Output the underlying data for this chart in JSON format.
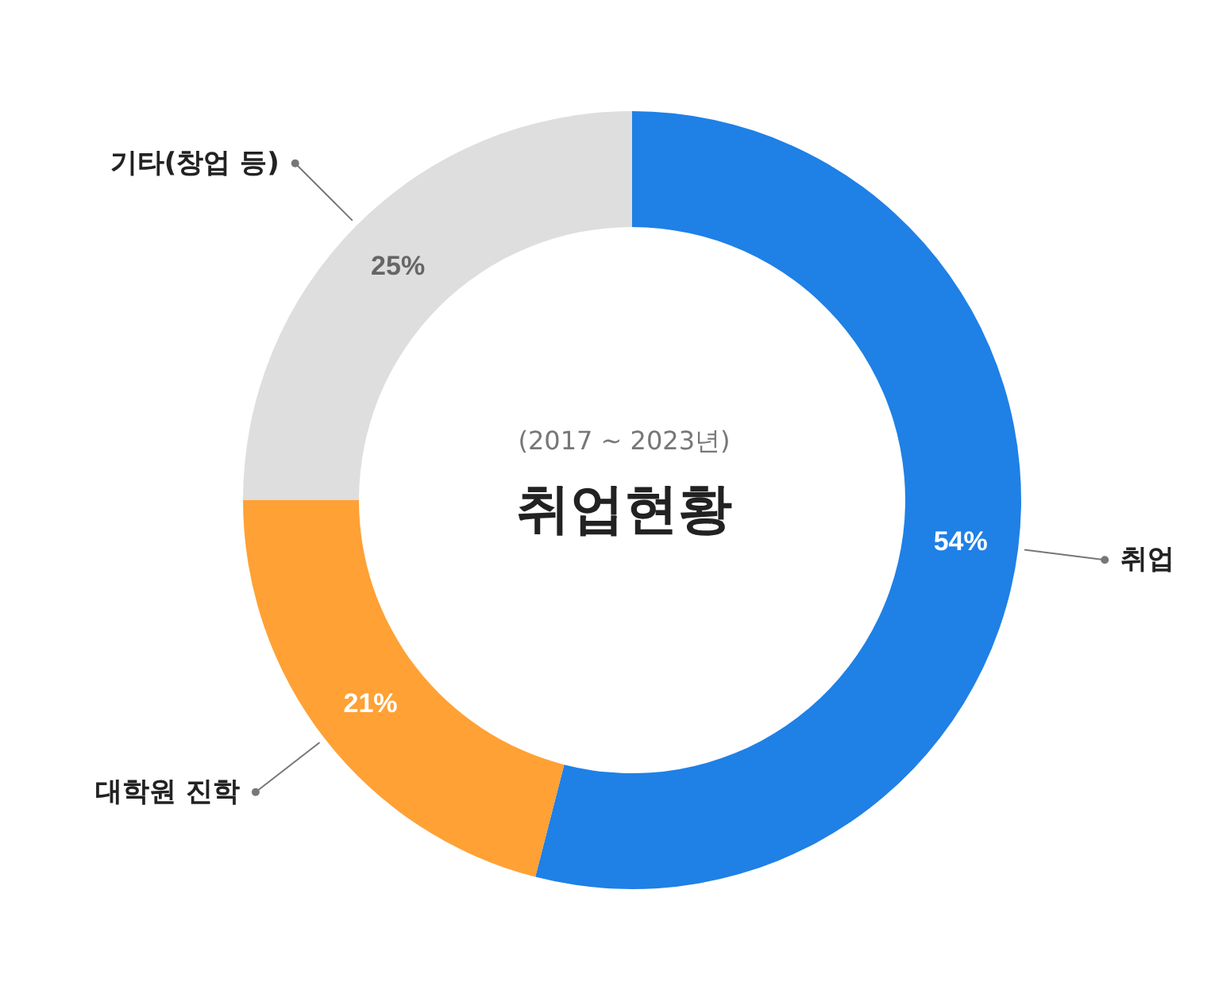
{
  "chart_data": {
    "type": "donut",
    "title": "취업현황",
    "subtitle": "(2017 ~ 2023년)",
    "categories": [
      "취업",
      "대학원 진학",
      "기타(창업 등)"
    ],
    "values": [
      54,
      21,
      25
    ],
    "colors": [
      "#1f80e6",
      "#ffa135",
      "#dedede"
    ],
    "value_labels": [
      "54%",
      "21%",
      "25%"
    ]
  }
}
